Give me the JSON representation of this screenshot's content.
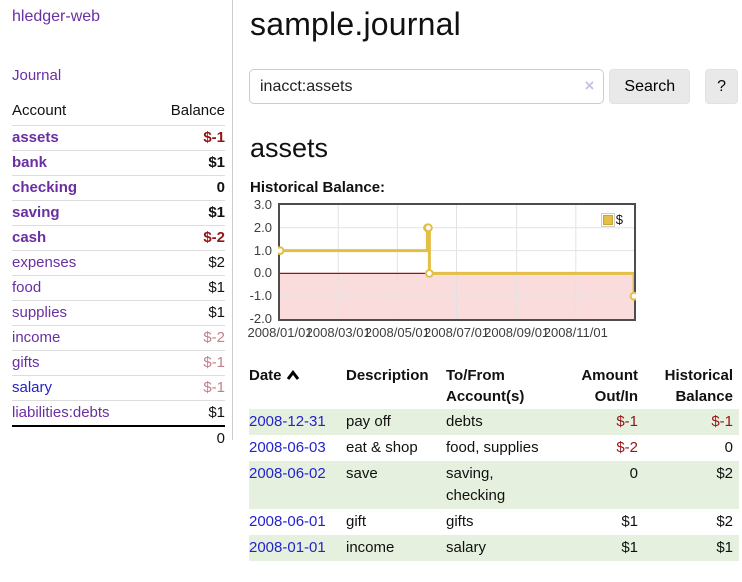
{
  "colors": {
    "link_purple": "#6a2fa3",
    "link_blue": "#2323cc",
    "negative_strong": "#971414",
    "negative_soft": "#c2808a",
    "row_stripe_green": "#e5f0df",
    "series_gold": "#e5be45",
    "chart_negative_fill": "#fbdcdc",
    "chart_zero_line": "#a01010"
  },
  "sidebar": {
    "brand": "hledger-web",
    "nav": {
      "journal": "Journal"
    },
    "accounts_table": {
      "headers": {
        "account": "Account",
        "balance": "Balance"
      },
      "rows": [
        {
          "account": "assets",
          "balance": "$-1",
          "indent": 1,
          "bold": true,
          "balance_class": "negative"
        },
        {
          "account": "bank",
          "balance": "$1",
          "indent": 2,
          "bold": true,
          "balance_class": "positive"
        },
        {
          "account": "checking",
          "balance": "0",
          "indent": 3,
          "bold": true,
          "balance_class": "positive"
        },
        {
          "account": "saving",
          "balance": "$1",
          "indent": 3,
          "bold": true,
          "balance_class": "positive"
        },
        {
          "account": "cash",
          "balance": "$-2",
          "indent": 2,
          "bold": true,
          "balance_class": "negative"
        },
        {
          "account": "expenses",
          "balance": "$2",
          "indent": 1,
          "bold": false,
          "balance_class": "positive"
        },
        {
          "account": "food",
          "balance": "$1",
          "indent": 2,
          "bold": false,
          "balance_class": "positive"
        },
        {
          "account": "supplies",
          "balance": "$1",
          "indent": 2,
          "bold": false,
          "balance_class": "positive"
        },
        {
          "account": "income",
          "balance": "$-2",
          "indent": 1,
          "bold": false,
          "balance_class": "negative-soft"
        },
        {
          "account": "gifts",
          "balance": "$-1",
          "indent": 2,
          "bold": false,
          "balance_class": "negative-soft"
        },
        {
          "account": "salary",
          "balance": "$-1",
          "indent": 2,
          "bold": false,
          "balance_class": "negative-soft",
          "link_color": "blue"
        },
        {
          "account": "liabilities:debts",
          "balance": "$1",
          "indent": 1,
          "bold": false,
          "balance_class": "positive"
        }
      ],
      "total": "0"
    }
  },
  "main": {
    "title": "sample.journal",
    "search": {
      "value": "inacct:assets",
      "clear_icon": "×",
      "button_label": "Search",
      "help_label": "?"
    },
    "account_heading": "assets",
    "chart_heading": "Historical Balance:"
  },
  "chart_data": {
    "type": "line",
    "style": "step-after",
    "title": "Historical Balance:",
    "series": [
      {
        "name": "$",
        "color": "#e5be45",
        "points": [
          {
            "date": "2008-01-01",
            "value": 1
          },
          {
            "date": "2008-06-01",
            "value": 2
          },
          {
            "date": "2008-06-02",
            "value": 2
          },
          {
            "date": "2008-06-03",
            "value": 0
          },
          {
            "date": "2008-12-31",
            "value": -1
          }
        ]
      }
    ],
    "x_range": [
      "2008-01-01",
      "2008-12-31"
    ],
    "y_range": [
      -2,
      3
    ],
    "x_ticks": [
      {
        "date": "2008-01-01",
        "label": "2008/01/01"
      },
      {
        "date": "2008-03-01",
        "label": "2008/03/01"
      },
      {
        "date": "2008-05-01",
        "label": "2008/05/01"
      },
      {
        "date": "2008-07-01",
        "label": "2008/07/01"
      },
      {
        "date": "2008-09-01",
        "label": "2008/09/01"
      },
      {
        "date": "2008-11-01",
        "label": "2008/11/01"
      }
    ],
    "y_ticks": [
      3.0,
      2.0,
      1.0,
      0.0,
      -1.0,
      -2.0
    ],
    "grid": true,
    "legend": {
      "label": "$",
      "position": "top-right"
    },
    "negative_region_color": "#fbdcdc",
    "zero_line_color": "#a01010",
    "border_color": "#4d4d4d",
    "grid_color": "#e3e3e3"
  },
  "register_table": {
    "headers": [
      {
        "label": "Date",
        "sort": "asc",
        "align": "left"
      },
      {
        "label": "Description",
        "align": "left"
      },
      {
        "label": "To/From\nAccount(s)",
        "align": "left"
      },
      {
        "label": "Amount\nOut/In",
        "align": "right"
      },
      {
        "label": "Historical\nBalance",
        "align": "right"
      }
    ],
    "rows": [
      {
        "date": "2008-12-31",
        "description": "pay off",
        "accounts": "debts",
        "amount": "$-1",
        "amount_negative": true,
        "balance": "$-1",
        "balance_negative": true
      },
      {
        "date": "2008-06-03",
        "description": "eat & shop",
        "accounts": "food, supplies",
        "amount": "$-2",
        "amount_negative": true,
        "balance": "0",
        "balance_negative": false
      },
      {
        "date": "2008-06-02",
        "description": "save",
        "accounts": "saving,\nchecking",
        "amount": "0",
        "amount_negative": false,
        "balance": "$2",
        "balance_negative": false
      },
      {
        "date": "2008-06-01",
        "description": "gift",
        "accounts": "gifts",
        "amount": "$1",
        "amount_negative": false,
        "balance": "$2",
        "balance_negative": false
      },
      {
        "date": "2008-01-01",
        "description": "income",
        "accounts": "salary",
        "amount": "$1",
        "amount_negative": false,
        "balance": "$1",
        "balance_negative": false
      }
    ]
  }
}
